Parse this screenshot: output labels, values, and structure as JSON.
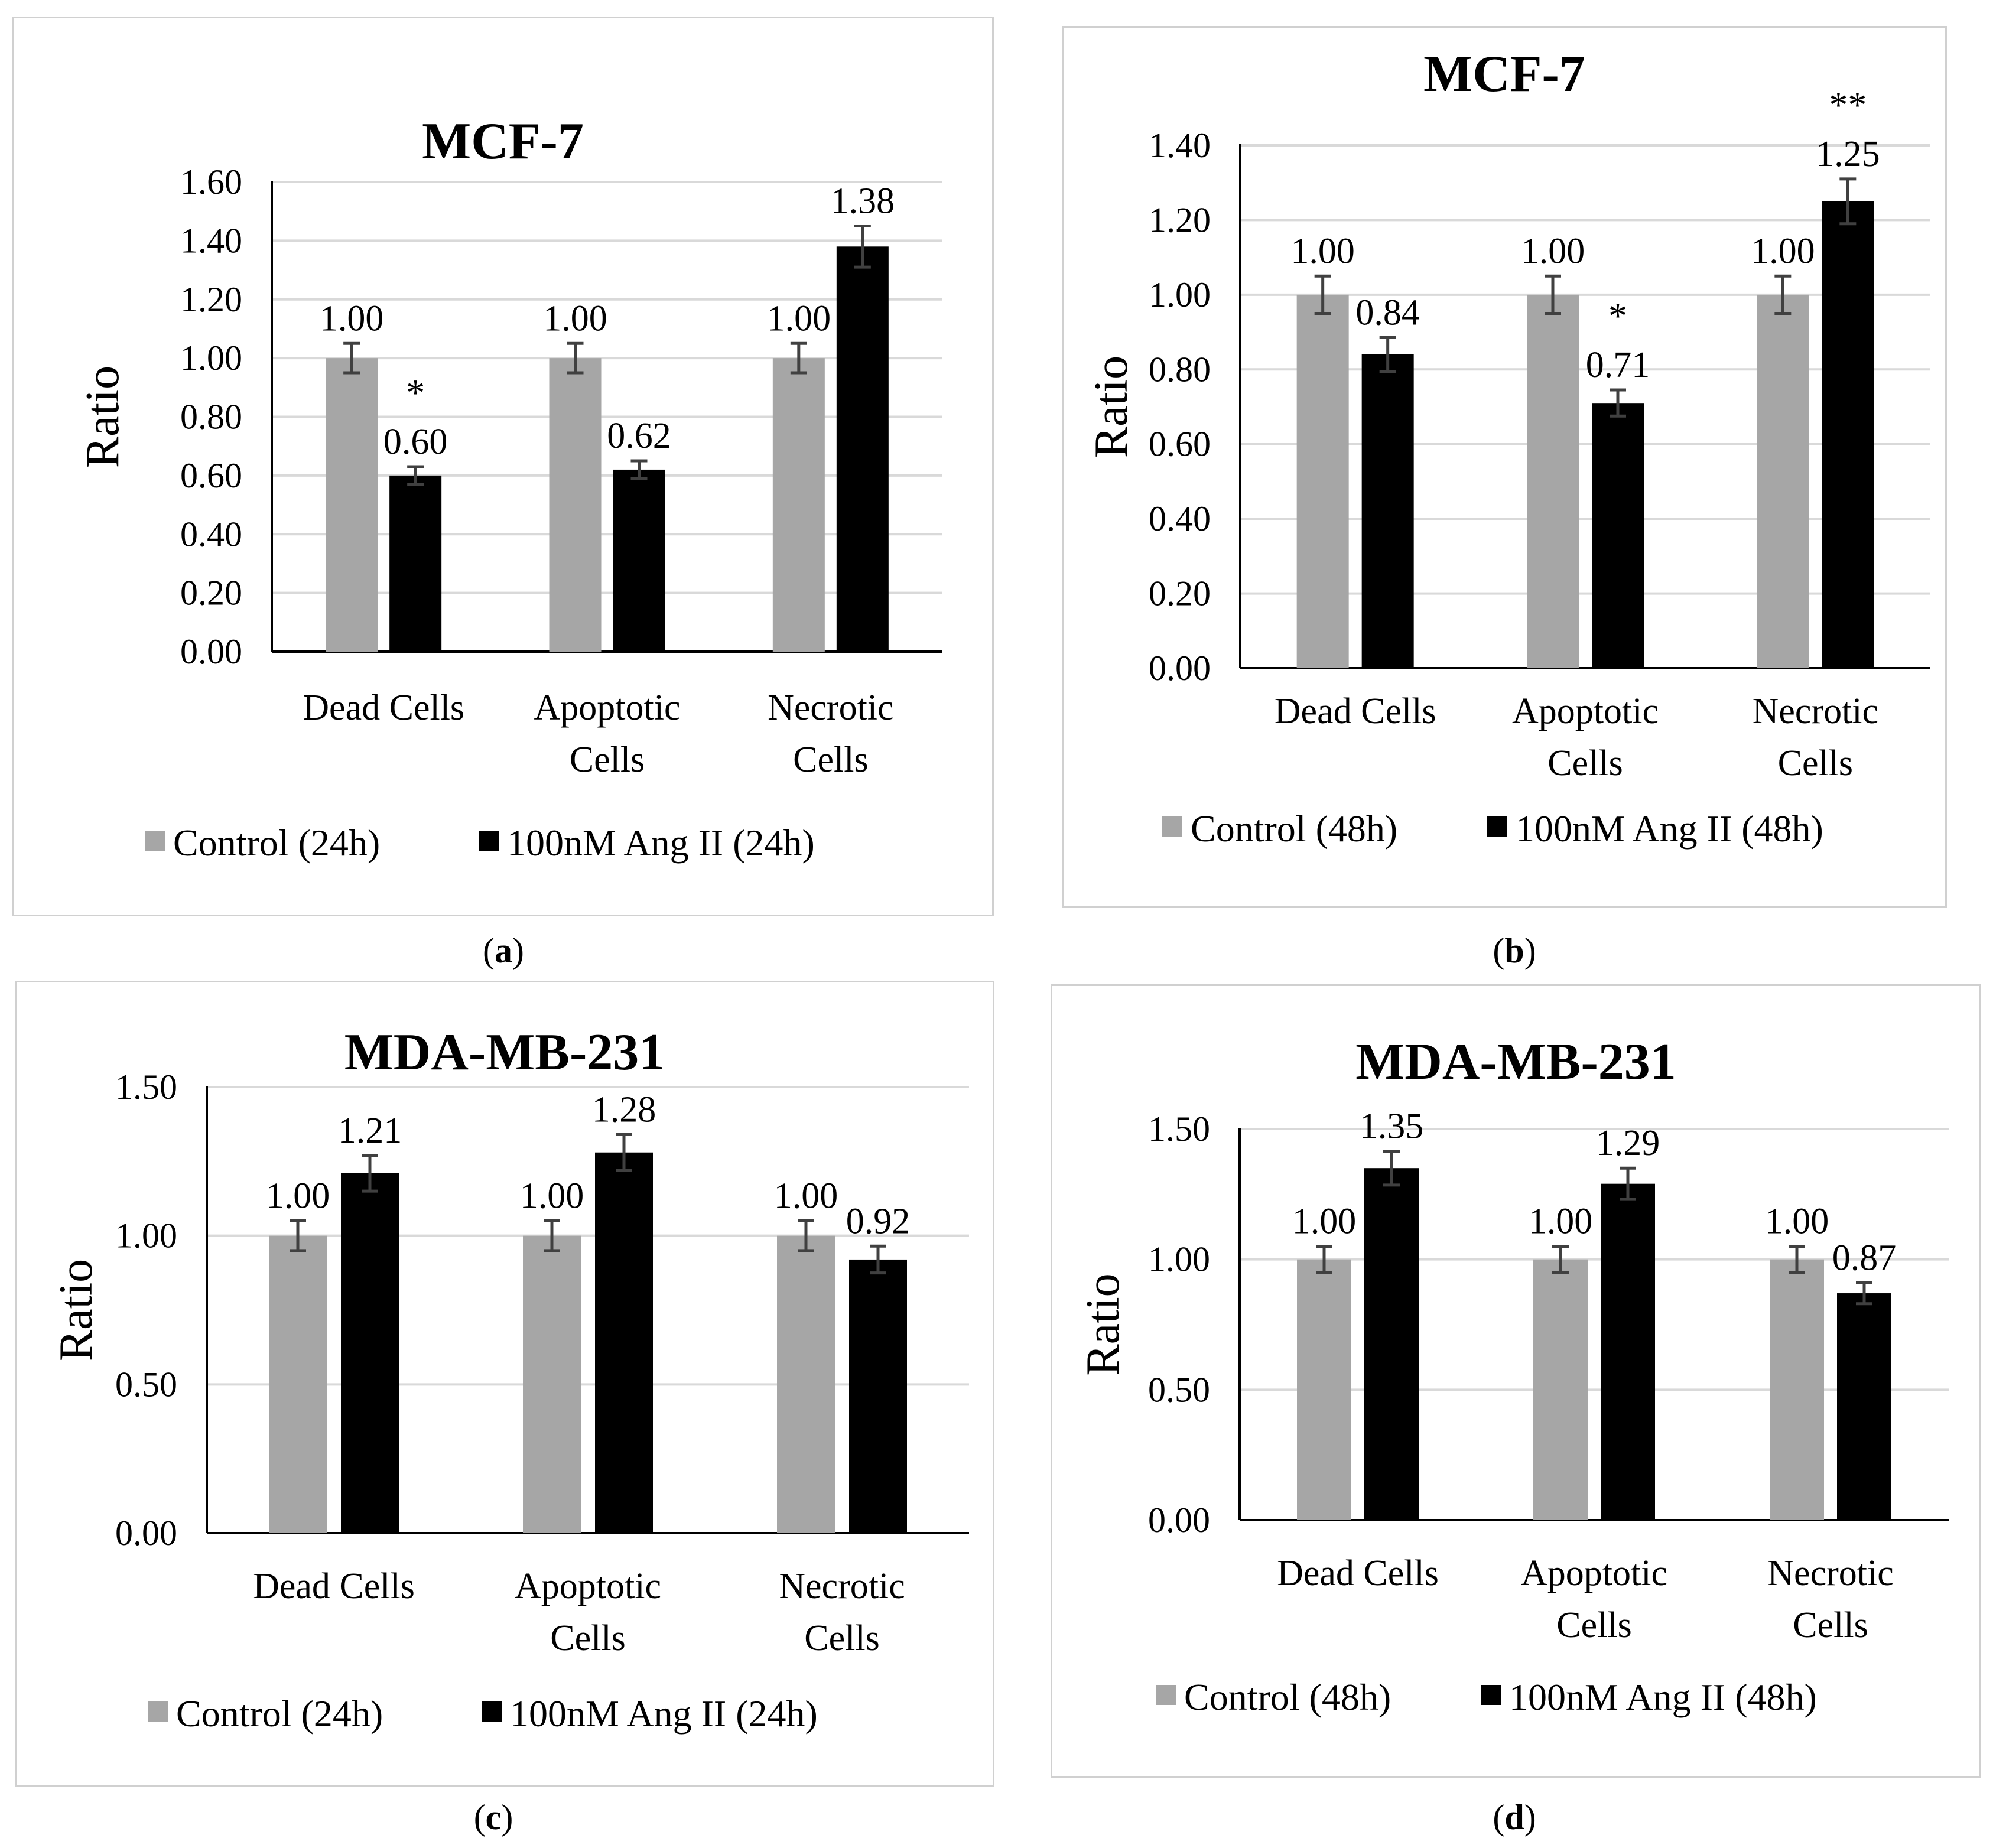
{
  "chart_data": [
    {
      "panel": "a",
      "type": "bar",
      "title": "MCF-7",
      "ylabel": "Ratio",
      "xlabel": "",
      "ylim": [
        0,
        1.6
      ],
      "yticks": [
        "0.00",
        "0.20",
        "0.40",
        "0.60",
        "0.80",
        "1.00",
        "1.20",
        "1.40",
        "1.60"
      ],
      "categories": [
        [
          "Dead Cells"
        ],
        [
          "Apoptotic",
          "Cells"
        ],
        [
          "Necrotic",
          "Cells"
        ]
      ],
      "series": [
        {
          "name": "Control (24h)",
          "color": "#a6a6a6",
          "values": [
            1.0,
            1.0,
            1.0
          ],
          "errors": [
            0.05,
            0.05,
            0.05
          ],
          "labels": [
            "1.00",
            "1.00",
            "1.00"
          ],
          "significance": [
            "",
            "",
            ""
          ]
        },
        {
          "name": "100nM Ang II (24h)",
          "color": "#000000",
          "values": [
            0.6,
            0.62,
            1.38
          ],
          "errors": [
            0.03,
            0.03,
            0.07
          ],
          "labels": [
            "0.60",
            "0.62",
            "1.38"
          ],
          "significance": [
            "*",
            "",
            ""
          ]
        }
      ],
      "caption": "a"
    },
    {
      "panel": "b",
      "type": "bar",
      "title": "MCF-7",
      "ylabel": "Ratio",
      "xlabel": "",
      "ylim": [
        0,
        1.4
      ],
      "yticks": [
        "0.00",
        "0.20",
        "0.40",
        "0.60",
        "0.80",
        "1.00",
        "1.20",
        "1.40"
      ],
      "categories": [
        [
          "Dead Cells"
        ],
        [
          "Apoptotic",
          "Cells"
        ],
        [
          "Necrotic",
          "Cells"
        ]
      ],
      "series": [
        {
          "name": "Control (48h)",
          "color": "#a6a6a6",
          "values": [
            1.0,
            1.0,
            1.0
          ],
          "errors": [
            0.05,
            0.05,
            0.05
          ],
          "labels": [
            "1.00",
            "1.00",
            "1.00"
          ],
          "significance": [
            "",
            "",
            ""
          ]
        },
        {
          "name": "100nM Ang II (48h)",
          "color": "#000000",
          "values": [
            0.84,
            0.71,
            1.25
          ],
          "errors": [
            0.045,
            0.035,
            0.06
          ],
          "labels": [
            "0.84",
            "0.71",
            "1.25"
          ],
          "significance": [
            "",
            "*",
            "**"
          ]
        }
      ],
      "caption": "b"
    },
    {
      "panel": "c",
      "type": "bar",
      "title": "MDA-MB-231",
      "ylabel": "Ratio",
      "xlabel": "",
      "ylim": [
        0,
        1.5
      ],
      "yticks": [
        "0.00",
        "0.50",
        "1.00",
        "1.50"
      ],
      "categories": [
        [
          "Dead Cells"
        ],
        [
          "Apoptotic",
          "Cells"
        ],
        [
          "Necrotic",
          "Cells"
        ]
      ],
      "series": [
        {
          "name": "Control (24h)",
          "color": "#a6a6a6",
          "values": [
            1.0,
            1.0,
            1.0
          ],
          "errors": [
            0.05,
            0.05,
            0.05
          ],
          "labels": [
            "1.00",
            "1.00",
            "1.00"
          ],
          "significance": [
            "",
            "",
            ""
          ]
        },
        {
          "name": "100nM Ang II (24h)",
          "color": "#000000",
          "values": [
            1.21,
            1.28,
            0.92
          ],
          "errors": [
            0.06,
            0.06,
            0.045
          ],
          "labels": [
            "1.21",
            "1.28",
            "0.92"
          ],
          "significance": [
            "",
            "",
            ""
          ]
        }
      ],
      "caption": "c"
    },
    {
      "panel": "d",
      "type": "bar",
      "title": "MDA-MB-231",
      "ylabel": "Ratio",
      "xlabel": "",
      "ylim": [
        0,
        1.5
      ],
      "yticks": [
        "0.00",
        "0.50",
        "1.00",
        "1.50"
      ],
      "categories": [
        [
          "Dead Cells"
        ],
        [
          "Apoptotic",
          "Cells"
        ],
        [
          "Necrotic",
          "Cells"
        ]
      ],
      "series": [
        {
          "name": "Control (48h)",
          "color": "#a6a6a6",
          "values": [
            1.0,
            1.0,
            1.0
          ],
          "errors": [
            0.05,
            0.05,
            0.05
          ],
          "labels": [
            "1.00",
            "1.00",
            "1.00"
          ],
          "significance": [
            "",
            "",
            ""
          ]
        },
        {
          "name": "100nM Ang II (48h)",
          "color": "#000000",
          "values": [
            1.35,
            1.29,
            0.87
          ],
          "errors": [
            0.065,
            0.06,
            0.04
          ],
          "labels": [
            "1.35",
            "1.29",
            "0.87"
          ],
          "significance": [
            "",
            "",
            ""
          ]
        }
      ],
      "caption": "d"
    }
  ]
}
